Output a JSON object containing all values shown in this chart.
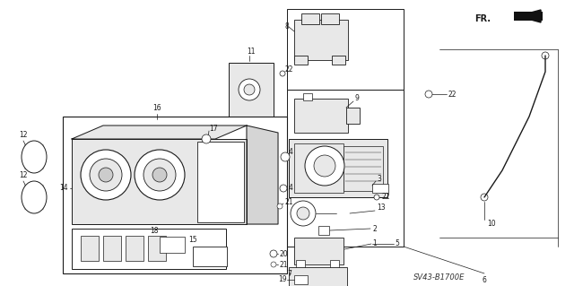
{
  "bg_color": "#ffffff",
  "diagram_code": "SV43-B1700E",
  "fig_width": 6.4,
  "fig_height": 3.19,
  "dpi": 100,
  "line_color": "#1a1a1a",
  "label_fontsize": 5.5,
  "diagram_code_fontsize": 6.0
}
